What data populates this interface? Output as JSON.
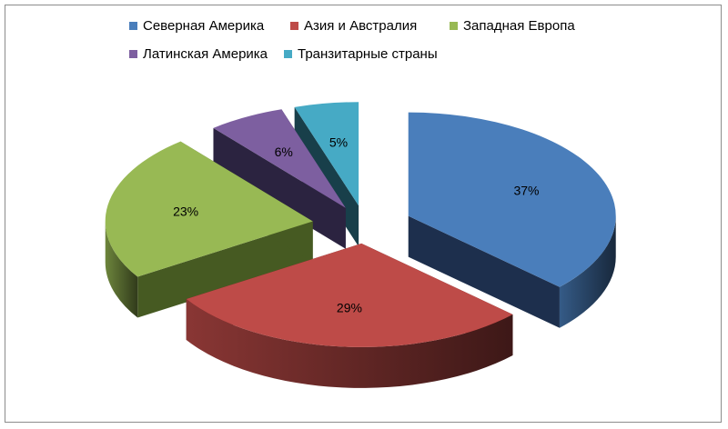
{
  "chart_data": {
    "type": "pie",
    "title": "",
    "legend_position": "top",
    "exploded": true,
    "three_d": true,
    "categories": [
      "Северная Америка",
      "Азия и Австралия",
      "Западная Европа",
      "Латинская Америка",
      "Транзитарные страны"
    ],
    "values": [
      37,
      29,
      23,
      6,
      5
    ],
    "value_labels": [
      "37%",
      "29%",
      "23%",
      "6%",
      "5%"
    ],
    "colors": [
      "#4a7ebb",
      "#be4b48",
      "#98b954",
      "#7d5fa0",
      "#46aac5"
    ],
    "side_colors": [
      "#1d2f4d",
      "#4f1515",
      "#465a22",
      "#2b2340",
      "#183f4a"
    ]
  }
}
